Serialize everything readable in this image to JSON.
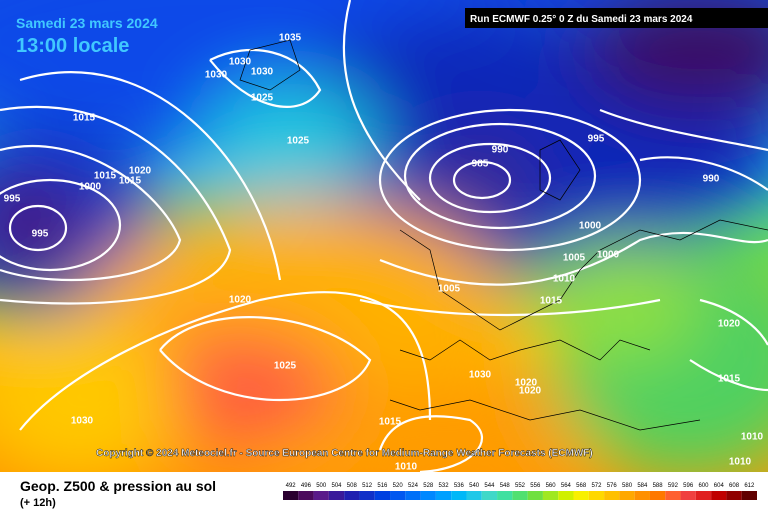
{
  "header": {
    "date": "Samedi 23 mars 2024",
    "time": "13:00 locale",
    "run": "Run ECMWF 0.25° 0 Z du Samedi 23 mars 2024"
  },
  "copyright": "Copyright © 2024 Meteociel.fr - Source European Centre for Medium-Range Weather Forecasts (ECMWF)",
  "footer": {
    "title": "Geop. Z500 & pression au sol",
    "lead": "(+ 12h)"
  },
  "isobar_labels": [
    "1035",
    "1030",
    "1030",
    "1030",
    "1025",
    "1015",
    "1025",
    "1020",
    "1015",
    "1015",
    "1000",
    "995",
    "995",
    "985",
    "990",
    "995",
    "990",
    "1000",
    "1000",
    "1005",
    "1010",
    "1015",
    "1020",
    "1025",
    "1030",
    "1030",
    "1020",
    "1020",
    "1015",
    "1015",
    "1010",
    "1010",
    "1010",
    "1005",
    "1020"
  ],
  "legend": {
    "labels": [
      492,
      496,
      500,
      504,
      508,
      512,
      516,
      520,
      524,
      528,
      532,
      536,
      540,
      544,
      548,
      552,
      556,
      560,
      564,
      568,
      572,
      576,
      580,
      584,
      588,
      592,
      596,
      600,
      604,
      608,
      612
    ],
    "colors": [
      "#2a0030",
      "#4b0a5c",
      "#5a1a8a",
      "#3a1a9a",
      "#2020b0",
      "#1030c8",
      "#0040e0",
      "#0058f0",
      "#0070f8",
      "#0088ff",
      "#00a0ff",
      "#00b8f8",
      "#20c8e8",
      "#40d8c8",
      "#40e0a0",
      "#50e070",
      "#70e040",
      "#a0e820",
      "#d0f000",
      "#f8f000",
      "#ffd800",
      "#ffc000",
      "#ffa800",
      "#ff9000",
      "#ff7800",
      "#ff6030",
      "#f04040",
      "#e02020",
      "#c00000",
      "#900000",
      "#600000"
    ]
  }
}
